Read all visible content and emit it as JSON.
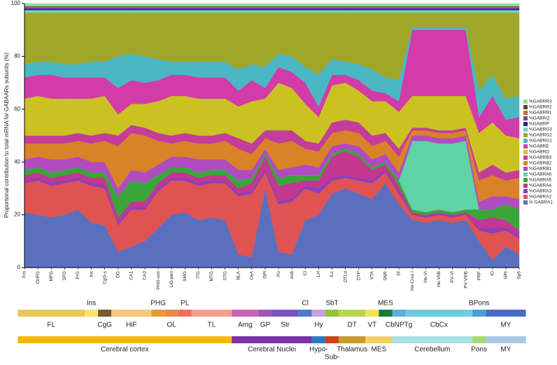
{
  "chart_data": {
    "type": "stacked_area",
    "ylabel": "Proportional contribution to total mRNA for GABAARs subunits (%)",
    "ylim": [
      0,
      100
    ],
    "yticks": [
      0,
      20,
      40,
      60,
      80,
      100
    ],
    "categories": [
      "Fro",
      "OrIFG",
      "MFG",
      "SFG",
      "PrG",
      "Ins",
      "CgG-s",
      "DG",
      "CA1",
      "CA3",
      "PHG-cos",
      "LiG-peri",
      "SMG",
      "ITG",
      "MTG",
      "STG",
      "BLA",
      "CeA",
      "GPi",
      "Pu",
      "Acb",
      "Cl",
      "LH",
      "ILc",
      "DTLd",
      "DTP",
      "VTA",
      "SNR",
      "DI",
      "He-Crus I",
      "He-VI",
      "He-VIIB",
      "PV-VI",
      "PV-VIIIB",
      "PRF",
      "IO",
      "GRI",
      "Sp5"
    ],
    "series": [
      {
        "name": "% GABRA1",
        "color": "#5b6fbf",
        "values": [
          21,
          20,
          19,
          20,
          22,
          17,
          16,
          6,
          8,
          10,
          15,
          20,
          21,
          18,
          19,
          18,
          5,
          4,
          30,
          6,
          5,
          18,
          20,
          28,
          30,
          28,
          26,
          32,
          24,
          18,
          17,
          18,
          17,
          18,
          10,
          3,
          8,
          5
        ]
      },
      {
        "name": "%GABRA2",
        "color": "#e05353",
        "values": [
          11,
          13,
          12,
          12,
          11,
          14,
          14,
          10,
          14,
          12,
          14,
          13,
          12,
          13,
          13,
          14,
          22,
          24,
          6,
          18,
          20,
          12,
          8,
          5,
          4,
          5,
          6,
          4,
          4,
          2,
          2,
          2,
          2,
          2,
          4,
          10,
          6,
          6
        ]
      },
      {
        "name": "%GABRA3",
        "color": "#8a3fbf",
        "values": [
          1,
          1,
          1,
          1,
          1,
          1,
          1,
          1,
          1,
          1,
          1,
          1,
          1,
          1,
          1,
          1,
          1,
          1,
          1,
          1,
          1,
          1,
          2,
          1,
          1,
          1,
          1,
          1,
          1,
          0.5,
          0.5,
          0.5,
          0.5,
          0.5,
          1,
          2,
          1,
          1
        ]
      },
      {
        "name": "%GABRA4",
        "color": "#c2378f",
        "values": [
          2,
          2,
          2,
          2,
          2,
          2,
          3,
          2,
          2,
          2,
          2,
          2,
          2,
          2,
          2,
          2,
          2,
          3,
          5,
          6,
          6,
          2,
          3,
          8,
          9,
          8,
          4,
          2,
          2,
          0.5,
          0.5,
          0.5,
          0.5,
          0.5,
          3,
          4,
          3,
          2
        ]
      },
      {
        "name": "%GABRA5",
        "color": "#3aa53a",
        "values": [
          2,
          2,
          2,
          2,
          2,
          2,
          2,
          8,
          8,
          7,
          3,
          2,
          2,
          2,
          2,
          2,
          3,
          2,
          1,
          3,
          3,
          2,
          2,
          1,
          1,
          1,
          1,
          1,
          2,
          1,
          1,
          1,
          1,
          1,
          4,
          3,
          6,
          8
        ]
      },
      {
        "name": "%GABRA6",
        "color": "#5fd3a5",
        "values": [
          0,
          0,
          0,
          0,
          0,
          0,
          0,
          0,
          0,
          0,
          0,
          0,
          0,
          0,
          0,
          0,
          0,
          0,
          0,
          0,
          0,
          0,
          0,
          0,
          0,
          0,
          0,
          0,
          0,
          26,
          27,
          25,
          26,
          26,
          0,
          0,
          0,
          0
        ]
      },
      {
        "name": "%GABRB1",
        "color": "#b04cc0",
        "values": [
          4,
          4,
          5,
          4,
          4,
          4,
          4,
          3,
          4,
          4,
          4,
          4,
          4,
          5,
          4,
          4,
          4,
          3,
          2,
          3,
          3,
          4,
          3,
          3,
          2,
          3,
          3,
          3,
          3,
          2,
          2,
          2,
          2,
          2,
          3,
          5,
          3,
          4
        ]
      },
      {
        "name": "%GABRB2",
        "color": "#d98227",
        "values": [
          6,
          5,
          6,
          6,
          6,
          7,
          8,
          16,
          14,
          14,
          9,
          5,
          6,
          6,
          6,
          7,
          8,
          6,
          4,
          10,
          10,
          6,
          6,
          5,
          5,
          5,
          5,
          5,
          6,
          2,
          2,
          2,
          2,
          2,
          8,
          8,
          6,
          8
        ]
      },
      {
        "name": "%GABRB3",
        "color": "#c33d9a",
        "values": [
          3,
          3,
          3,
          3,
          3,
          3,
          3,
          4,
          3,
          3,
          3,
          3,
          3,
          3,
          3,
          3,
          4,
          4,
          3,
          5,
          4,
          3,
          3,
          4,
          4,
          4,
          4,
          3,
          3,
          1,
          1,
          1,
          1,
          1,
          3,
          4,
          3,
          3
        ]
      },
      {
        "name": "%GABRD",
        "color": "#cbc222",
        "values": [
          14,
          15,
          14,
          14,
          13,
          14,
          14,
          8,
          8,
          9,
          12,
          15,
          14,
          14,
          14,
          13,
          12,
          16,
          12,
          18,
          16,
          14,
          10,
          14,
          14,
          12,
          13,
          12,
          14,
          12,
          12,
          13,
          13,
          12,
          15,
          16,
          14,
          12
        ]
      },
      {
        "name": "%GABRE",
        "color": "#d23ca8",
        "values": [
          8,
          8,
          9,
          8,
          8,
          8,
          7,
          10,
          9,
          8,
          8,
          8,
          8,
          8,
          8,
          8,
          6,
          8,
          4,
          6,
          6,
          8,
          4,
          4,
          3,
          4,
          4,
          3,
          4,
          25,
          25,
          25,
          25,
          25,
          6,
          10,
          6,
          8
        ]
      },
      {
        "name": "%GABRG1",
        "color": "#4bb7c5",
        "values": [
          5,
          5,
          5,
          5,
          5,
          6,
          6,
          12,
          10,
          10,
          8,
          5,
          5,
          6,
          6,
          6,
          8,
          6,
          8,
          5,
          6,
          6,
          12,
          6,
          5,
          6,
          8,
          6,
          8,
          1,
          1,
          1,
          1,
          1,
          10,
          8,
          8,
          8
        ]
      },
      {
        "name": "%GABRG2",
        "color": "#a0a62a",
        "values": [
          19.5,
          18.5,
          18.5,
          19.5,
          19.5,
          18.5,
          18.5,
          16.5,
          15.5,
          16.5,
          17.5,
          18.5,
          18.5,
          18.5,
          18.5,
          18.5,
          21.5,
          19.5,
          20.5,
          15.5,
          16.5,
          20.5,
          23.5,
          17.5,
          18.5,
          19.5,
          21.5,
          24.5,
          25.5,
          5.5,
          5.5,
          5.5,
          5.5,
          5.5,
          29.5,
          23.5,
          32.5,
          31.5
        ]
      },
      {
        "name": "%GABRG3",
        "color": "#74d0c0",
        "values": [
          1,
          1,
          1,
          1,
          1,
          1,
          1,
          1,
          1,
          1,
          1,
          1,
          1,
          1,
          1,
          1,
          1,
          1,
          1,
          1,
          1,
          1,
          1,
          1,
          1,
          1,
          1,
          1,
          1,
          1,
          1,
          1,
          1,
          1,
          1,
          1,
          1,
          1
        ]
      },
      {
        "name": "%GABRP",
        "color": "#2a2a6e",
        "values": [
          0.5,
          0.5,
          0.5,
          0.5,
          0.5,
          0.5,
          0.5,
          0.5,
          0.5,
          0.5,
          0.5,
          0.5,
          0.5,
          0.5,
          0.5,
          0.5,
          0.5,
          0.5,
          0.5,
          0.5,
          0.5,
          0.5,
          0.5,
          0.5,
          0.5,
          0.5,
          0.5,
          0.5,
          0.5,
          0.5,
          0.5,
          0.5,
          0.5,
          0.5,
          0.5,
          0.5,
          0.5,
          0.5
        ]
      },
      {
        "name": "%GABRQ",
        "color": "#7a3fb0",
        "values": [
          0.5,
          0.5,
          0.5,
          0.5,
          0.5,
          0.5,
          0.5,
          0.5,
          0.5,
          0.5,
          0.5,
          0.5,
          0.5,
          0.5,
          0.5,
          0.5,
          0.5,
          0.5,
          0.5,
          0.5,
          0.5,
          0.5,
          0.5,
          0.5,
          0.5,
          0.5,
          0.5,
          0.5,
          0.5,
          0.5,
          0.5,
          0.5,
          0.5,
          0.5,
          0.5,
          0.5,
          0.5,
          0.5
        ]
      },
      {
        "name": "%GABRR1",
        "color": "#c07030",
        "values": [
          0.3,
          0.3,
          0.3,
          0.3,
          0.3,
          0.3,
          0.3,
          0.3,
          0.3,
          0.3,
          0.3,
          0.3,
          0.3,
          0.3,
          0.3,
          0.3,
          0.3,
          0.3,
          0.3,
          0.3,
          0.3,
          0.3,
          0.3,
          0.3,
          0.3,
          0.3,
          0.3,
          0.3,
          0.3,
          0.3,
          0.3,
          0.3,
          0.3,
          0.3,
          0.3,
          0.3,
          0.3,
          0.3
        ]
      },
      {
        "name": "%GABRR2",
        "color": "#5a4a20",
        "values": [
          0.2,
          0.2,
          0.2,
          0.2,
          0.2,
          0.2,
          0.2,
          0.2,
          0.2,
          0.2,
          0.2,
          0.2,
          0.2,
          0.2,
          0.2,
          0.2,
          0.2,
          0.2,
          0.2,
          0.2,
          0.2,
          0.2,
          0.2,
          0.2,
          0.2,
          0.2,
          0.2,
          0.2,
          0.2,
          0.2,
          0.2,
          0.2,
          0.2,
          0.2,
          0.2,
          0.2,
          0.2,
          0.2
        ]
      },
      {
        "name": "%GABRR3",
        "color": "#90dca0",
        "values": [
          1,
          1,
          1,
          1,
          1,
          1,
          1,
          1,
          1,
          1,
          1,
          1,
          1,
          1,
          1,
          1,
          1,
          1,
          1,
          1,
          1,
          1,
          1,
          1,
          1,
          1,
          1,
          1,
          1,
          1,
          1,
          1,
          1,
          1,
          1,
          1,
          1,
          1
        ]
      }
    ],
    "region_rows": [
      [
        {
          "label": "FL",
          "first": "Fro",
          "last": "PrG",
          "color": "#e8c65a"
        },
        {
          "label": "Ins",
          "first": "Ins",
          "last": "Ins",
          "color": "#f5e66a"
        },
        {
          "label": "CgG",
          "first": "CgG-s",
          "last": "CgG-s",
          "color": "#7a5a2a"
        },
        {
          "label": "HiF",
          "first": "DG",
          "last": "CA3",
          "color": "#f2c87a"
        },
        {
          "label": "PHG",
          "first": "PHG-cos",
          "last": "PHG-cos",
          "color": "#e59a3a"
        },
        {
          "label": "OL",
          "first": "LiG-peri",
          "last": "LiG-peri",
          "color": "#e88a4a"
        },
        {
          "label": "PL",
          "first": "SMG",
          "last": "SMG",
          "color": "#ef6f5f"
        },
        {
          "label": "TL",
          "first": "ITG",
          "last": "STG",
          "color": "#f59f8f"
        },
        {
          "label": "Amg",
          "first": "BLA",
          "last": "CeA",
          "color": "#c964b4"
        },
        {
          "label": "GP",
          "first": "GPi",
          "last": "GPi",
          "color": "#9b59b6"
        },
        {
          "label": "Str",
          "first": "Pu",
          "last": "Acb",
          "color": "#7a55c0"
        },
        {
          "label": "Cl",
          "first": "Cl",
          "last": "Cl",
          "color": "#4a7bd0"
        },
        {
          "label": "Hy",
          "first": "LH",
          "last": "LH",
          "color": "#c8a0e0"
        },
        {
          "label": "SbT",
          "first": "ILc",
          "last": "ILc",
          "color": "#8fc43a"
        },
        {
          "label": "DT",
          "first": "DTLd",
          "last": "DTP",
          "color": "#b5d655"
        },
        {
          "label": "VT",
          "first": "VTA",
          "last": "VTA",
          "color": "#f5e05a"
        },
        {
          "label": "MES",
          "first": "SNR",
          "last": "SNR",
          "color": "#1a7a3a"
        },
        {
          "label": "CbNPTg",
          "first": "DI",
          "last": "DI",
          "color": "#5ab0d8"
        },
        {
          "label": "CbCx",
          "first": "He-Crus I",
          "last": "PV-VIIIB",
          "color": "#6ccde0"
        },
        {
          "label": "BPons",
          "first": "PRF",
          "last": "PRF",
          "color": "#48a0d8"
        },
        {
          "label": "MY",
          "first": "IO",
          "last": "Sp5",
          "color": "#4a6ac8"
        }
      ],
      [
        {
          "label": "Cerebral cortex",
          "first": "Fro",
          "last": "STG",
          "color": "#f5b800"
        },
        {
          "label": "Cerebral Nuclei",
          "first": "BLA",
          "last": "Cl",
          "color": "#7b2fa8"
        },
        {
          "label": "Hypo-",
          "first": "LH",
          "last": "LH",
          "color": "#2a7ac0"
        },
        {
          "label": "Sub-",
          "first": "ILc",
          "last": "ILc",
          "color": "#d0401a"
        },
        {
          "label": "Thalamus",
          "first": "DTLd",
          "last": "DTP",
          "color": "#c89a2a"
        },
        {
          "label": "MES",
          "first": "VTA",
          "last": "SNR",
          "color": "#f5d060"
        },
        {
          "label": "Cerebellum",
          "first": "DI",
          "last": "PV-VIIIB",
          "color": "#a8e0e8"
        },
        {
          "label": "Pons",
          "first": "PRF",
          "last": "PRF",
          "color": "#a8d870"
        },
        {
          "label": "MY",
          "first": "IO",
          "last": "Sp5",
          "color": "#a8c8e8"
        }
      ]
    ]
  }
}
